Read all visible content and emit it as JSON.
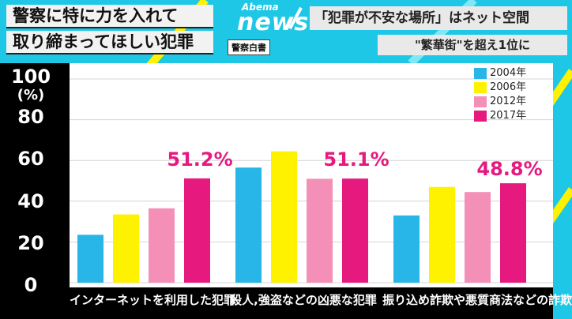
{
  "headline": {
    "line1": "警察に特に力を入れて",
    "line2": "取り締まってほしい犯罪",
    "source": "警察白書"
  },
  "logo": {
    "small": "Abema",
    "big": "news"
  },
  "topic": {
    "line1": "「犯罪が不安な場所」はネット空間",
    "line2": "\"繁華街\"を超え1位に"
  },
  "colors": {
    "background": "#1ec7e6",
    "plot_background": "#ffffff",
    "axis_background": "#000000",
    "highlight_text": "#e6197f"
  },
  "chart_data": {
    "type": "bar",
    "categories": [
      "インターネットを利用した犯罪",
      "殺人,強盗などの凶悪な犯罪",
      "振り込め詐欺や悪質商法などの詐欺"
    ],
    "series": [
      {
        "name": "2004年",
        "color": "#28b5e8",
        "values": [
          23.5,
          56.5,
          33
        ]
      },
      {
        "name": "2006年",
        "color": "#fff200",
        "values": [
          33.5,
          64.5,
          47
        ]
      },
      {
        "name": "2012年",
        "color": "#f48fb8",
        "values": [
          36.5,
          51,
          44.5
        ]
      },
      {
        "name": "2017年",
        "color": "#e6197f",
        "values": [
          51.2,
          51.1,
          48.8
        ]
      }
    ],
    "annotations": [
      "51.2%",
      "51.1%",
      "48.8%"
    ],
    "yticks": [
      "100",
      "80",
      "60",
      "40",
      "20",
      "0"
    ],
    "yunit": "(%)",
    "ylim": [
      0,
      100
    ],
    "grid": true,
    "legend_position": "top-right"
  }
}
